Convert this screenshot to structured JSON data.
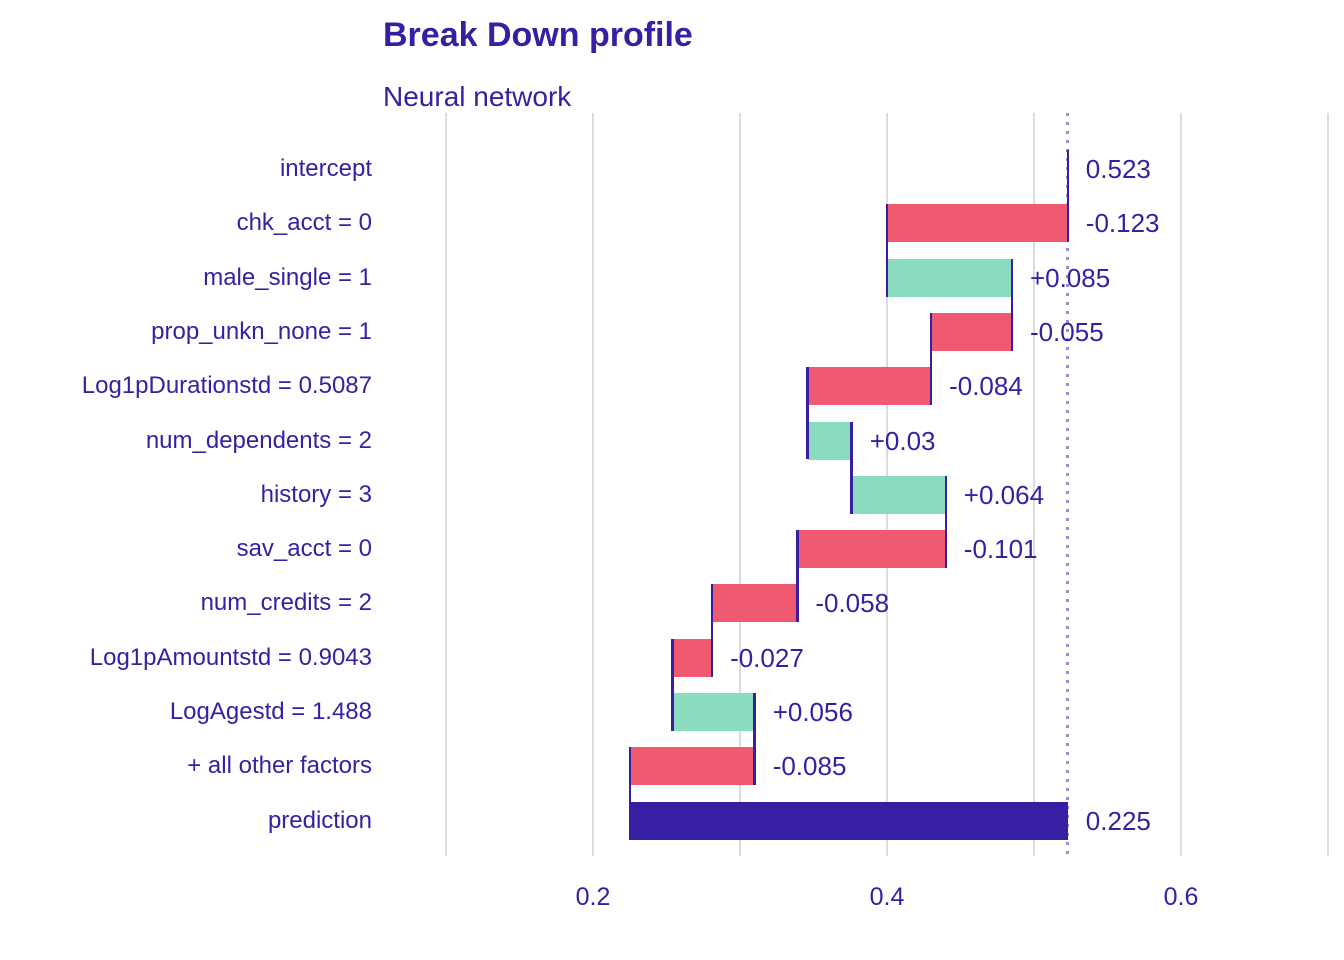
{
  "chart_data": {
    "type": "bar",
    "variant": "breakdown_waterfall",
    "orientation": "horizontal",
    "title": "Break Down profile",
    "subtitle": "Neural network",
    "baseline": 0.523,
    "grid": true,
    "x_axis": {
      "ticks": [
        {
          "label": "0.2",
          "value": 0.2
        },
        {
          "label": "0.4",
          "value": 0.4
        },
        {
          "label": "0.6",
          "value": 0.6
        }
      ],
      "minor_gridlines": [
        0.1,
        0.3,
        0.5,
        0.7
      ],
      "range": [
        0.091,
        0.711
      ]
    },
    "rows": [
      {
        "label": "intercept",
        "contribution": 0.523,
        "display": "0.523",
        "kind": "intercept",
        "start": 0.523,
        "end": 0.523
      },
      {
        "label": "chk_acct = 0",
        "contribution": -0.123,
        "display": "-0.123",
        "kind": "negative",
        "start": 0.523,
        "end": 0.4
      },
      {
        "label": "male_single = 1",
        "contribution": 0.085,
        "display": "+0.085",
        "kind": "positive",
        "start": 0.4,
        "end": 0.485
      },
      {
        "label": "prop_unkn_none = 1",
        "contribution": -0.055,
        "display": "-0.055",
        "kind": "negative",
        "start": 0.485,
        "end": 0.43
      },
      {
        "label": "Log1pDurationstd = 0.5087",
        "contribution": -0.084,
        "display": "-0.084",
        "kind": "negative",
        "start": 0.43,
        "end": 0.346
      },
      {
        "label": "num_dependents = 2",
        "contribution": 0.03,
        "display": "+0.03",
        "kind": "positive",
        "start": 0.346,
        "end": 0.376
      },
      {
        "label": "history = 3",
        "contribution": 0.064,
        "display": "+0.064",
        "kind": "positive",
        "start": 0.376,
        "end": 0.44
      },
      {
        "label": "sav_acct = 0",
        "contribution": -0.101,
        "display": "-0.101",
        "kind": "negative",
        "start": 0.44,
        "end": 0.339
      },
      {
        "label": "num_credits = 2",
        "contribution": -0.058,
        "display": "-0.058",
        "kind": "negative",
        "start": 0.339,
        "end": 0.281
      },
      {
        "label": "Log1pAmountstd = 0.9043",
        "contribution": -0.027,
        "display": "-0.027",
        "kind": "negative",
        "start": 0.281,
        "end": 0.254
      },
      {
        "label": "LogAgestd = 1.488",
        "contribution": 0.056,
        "display": "+0.056",
        "kind": "positive",
        "start": 0.254,
        "end": 0.31
      },
      {
        "label": "+ all other factors",
        "contribution": -0.085,
        "display": "-0.085",
        "kind": "negative",
        "start": 0.31,
        "end": 0.225
      },
      {
        "label": "prediction",
        "contribution": 0.225,
        "display": "0.225",
        "kind": "total",
        "start": 0.225,
        "end": 0.523
      }
    ],
    "colors": {
      "intercept": "#371ea3",
      "positive": "#8bdcbe",
      "negative": "#f05a71",
      "total": "#371ea3",
      "text": "#371ea3",
      "grid": "#dcdcdc",
      "baseline_dotted": "rgba(55,30,163,0.50)"
    }
  }
}
